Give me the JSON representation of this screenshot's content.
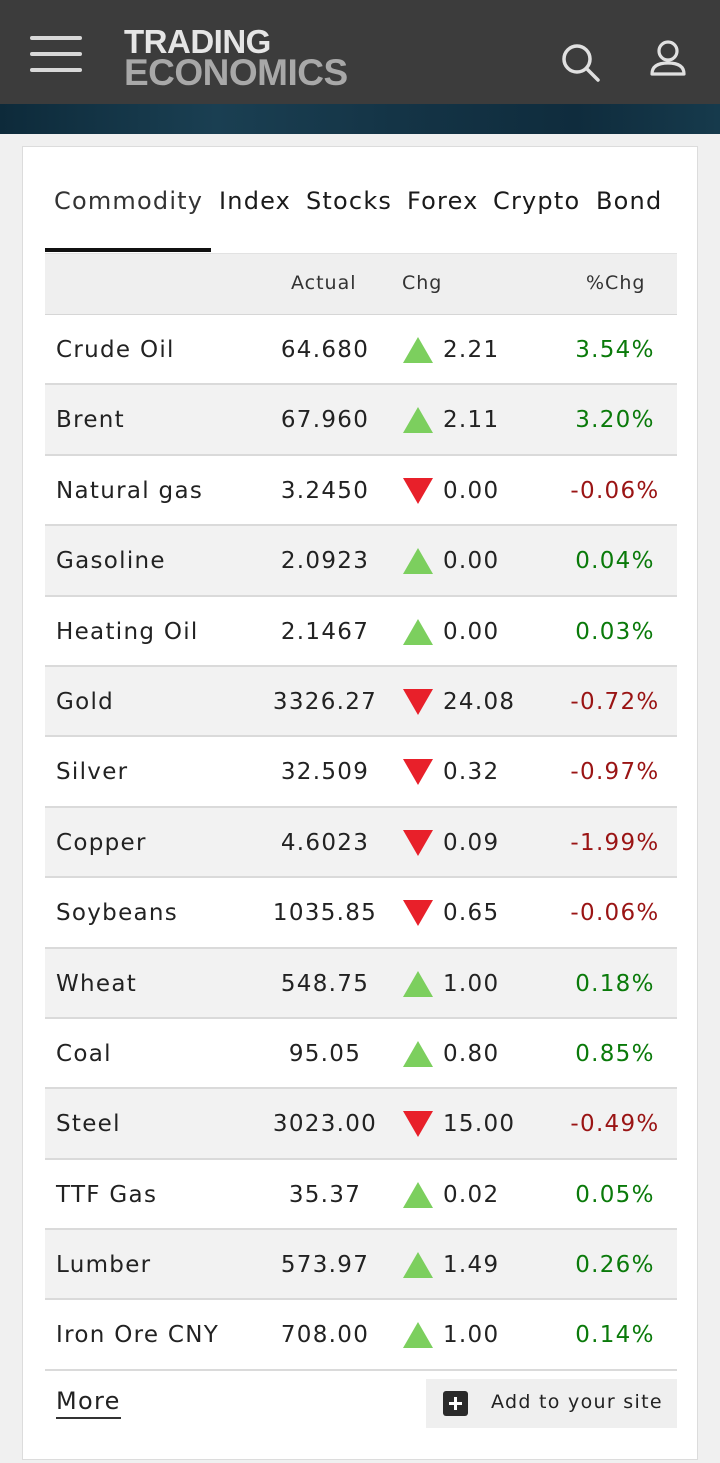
{
  "header": {
    "logo_line1": "TRADING",
    "logo_line2": "ECONOMICS",
    "menu_icon": "hamburger-menu-icon",
    "search_icon": "search-icon",
    "user_icon": "user-icon"
  },
  "tabs": [
    {
      "label": "Commodity",
      "active": true
    },
    {
      "label": "Index",
      "active": false
    },
    {
      "label": "Stocks",
      "active": false
    },
    {
      "label": "Forex",
      "active": false
    },
    {
      "label": "Crypto",
      "active": false
    },
    {
      "label": "Bond",
      "active": false
    }
  ],
  "table": {
    "headers": {
      "name": "",
      "actual": "Actual",
      "chg": "Chg",
      "pct": "%Chg"
    },
    "rows": [
      {
        "name": "Crude Oil",
        "actual": "64.680",
        "direction": "up",
        "chg": "2.21",
        "pct": "3.54%"
      },
      {
        "name": "Brent",
        "actual": "67.960",
        "direction": "up",
        "chg": "2.11",
        "pct": "3.20%"
      },
      {
        "name": "Natural gas",
        "actual": "3.2450",
        "direction": "down",
        "chg": "0.00",
        "pct": "-0.06%"
      },
      {
        "name": "Gasoline",
        "actual": "2.0923",
        "direction": "up",
        "chg": "0.00",
        "pct": "0.04%"
      },
      {
        "name": "Heating Oil",
        "actual": "2.1467",
        "direction": "up",
        "chg": "0.00",
        "pct": "0.03%"
      },
      {
        "name": "Gold",
        "actual": "3326.27",
        "direction": "down",
        "chg": "24.08",
        "pct": "-0.72%"
      },
      {
        "name": "Silver",
        "actual": "32.509",
        "direction": "down",
        "chg": "0.32",
        "pct": "-0.97%"
      },
      {
        "name": "Copper",
        "actual": "4.6023",
        "direction": "down",
        "chg": "0.09",
        "pct": "-1.99%"
      },
      {
        "name": "Soybeans",
        "actual": "1035.85",
        "direction": "down",
        "chg": "0.65",
        "pct": "-0.06%"
      },
      {
        "name": "Wheat",
        "actual": "548.75",
        "direction": "up",
        "chg": "1.00",
        "pct": "0.18%"
      },
      {
        "name": "Coal",
        "actual": "95.05",
        "direction": "up",
        "chg": "0.80",
        "pct": "0.85%"
      },
      {
        "name": "Steel",
        "actual": "3023.00",
        "direction": "down",
        "chg": "15.00",
        "pct": "-0.49%"
      },
      {
        "name": "TTF Gas",
        "actual": "35.37",
        "direction": "up",
        "chg": "0.02",
        "pct": "0.05%"
      },
      {
        "name": "Lumber",
        "actual": "573.97",
        "direction": "up",
        "chg": "1.49",
        "pct": "0.26%"
      },
      {
        "name": "Iron Ore CNY",
        "actual": "708.00",
        "direction": "up",
        "chg": "1.00",
        "pct": "0.14%"
      }
    ]
  },
  "footer": {
    "more_label": "More",
    "add_label": "Add to your site",
    "add_icon": "plus-square-icon"
  },
  "colors": {
    "up_arrow": "#7ccf5e",
    "down_arrow": "#e8202a",
    "positive_text": "#0a7a0a",
    "negative_text": "#9a1414",
    "header_bg": "#3c3c3c"
  }
}
